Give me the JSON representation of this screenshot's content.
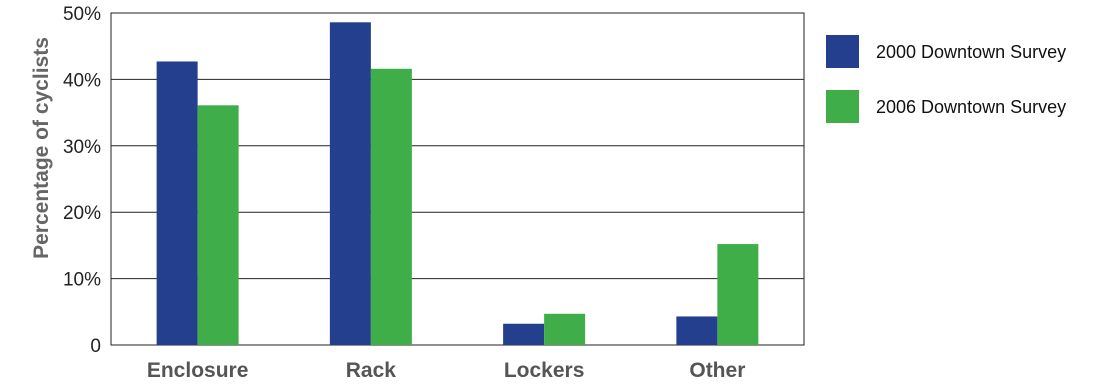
{
  "chart_data": {
    "type": "bar",
    "ylabel": "Percentage of cyclists",
    "ylim": [
      0,
      50
    ],
    "yticks": [
      {
        "value": 0,
        "label": "0"
      },
      {
        "value": 10,
        "label": "10%"
      },
      {
        "value": 20,
        "label": "20%"
      },
      {
        "value": 30,
        "label": "30%"
      },
      {
        "value": 40,
        "label": "40%"
      },
      {
        "value": 50,
        "label": "50%"
      }
    ],
    "categories": [
      "Enclosure",
      "Rack",
      "Lockers",
      "Other"
    ],
    "series": [
      {
        "name": "2000 Downtown Survey",
        "color": "#233f8e",
        "values": [
          42.7,
          48.6,
          3.2,
          4.3
        ]
      },
      {
        "name": "2006 Downtown Survey",
        "color": "#3fae49",
        "values": [
          36.1,
          41.6,
          4.7,
          15.2
        ]
      }
    ],
    "grid": true,
    "legend_position": "right"
  }
}
